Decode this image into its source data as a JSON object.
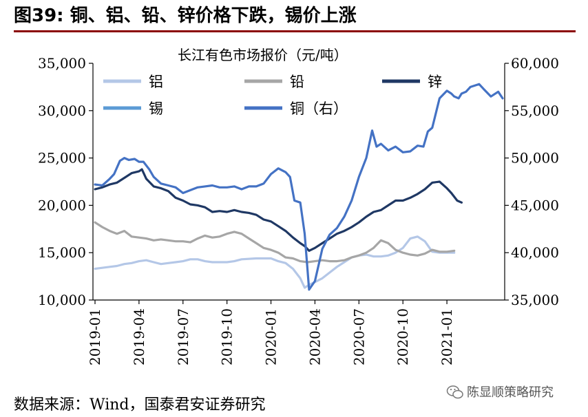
{
  "figure": {
    "title": "图39: 铜、铝、铅、锌价格下跌，锡价上涨",
    "source": "数据来源：Wind，国泰君安证券研究",
    "watermark": "陈显顺策略研究",
    "watermark_icon": "wechat-icon"
  },
  "chart_data": {
    "type": "line",
    "title": "长江有色市场报价（元/吨）",
    "xlabel": "",
    "ylabel": "",
    "x_ticks": [
      "2019-01",
      "2019-04",
      "2019-07",
      "2019-10",
      "2020-01",
      "2020-04",
      "2020-07",
      "2020-10",
      "2021-01"
    ],
    "x_range": [
      "2019-01",
      "2021-02"
    ],
    "ylim_left": [
      10000,
      35000
    ],
    "y_ticks_left": [
      "10,000",
      "15,000",
      "20,000",
      "25,000",
      "30,000",
      "35,000"
    ],
    "ylim_right": [
      35000,
      60000
    ],
    "y_ticks_right": [
      "35,000",
      "40,000",
      "45,000",
      "50,000",
      "55,000",
      "60,000"
    ],
    "grid": false,
    "legend_placement": "top-left",
    "series": [
      {
        "name": "铝",
        "axis": "left",
        "color": "#b4c7e7",
        "points": [
          [
            0,
            13300
          ],
          [
            0.5,
            13400
          ],
          [
            1,
            13500
          ],
          [
            1.5,
            13600
          ],
          [
            2,
            13800
          ],
          [
            2.5,
            13900
          ],
          [
            3,
            14100
          ],
          [
            3.5,
            14200
          ],
          [
            4,
            14000
          ],
          [
            4.5,
            13800
          ],
          [
            5,
            13900
          ],
          [
            5.5,
            14000
          ],
          [
            6,
            14100
          ],
          [
            6.5,
            14300
          ],
          [
            7,
            14300
          ],
          [
            7.5,
            14100
          ],
          [
            8,
            14000
          ],
          [
            8.5,
            14000
          ],
          [
            9,
            14000
          ],
          [
            9.5,
            14100
          ],
          [
            10,
            14300
          ],
          [
            11,
            14400
          ],
          [
            12,
            14400
          ],
          [
            12.5,
            14100
          ],
          [
            13,
            13900
          ],
          [
            13.5,
            13300
          ],
          [
            14,
            12300
          ],
          [
            14.3,
            11300
          ],
          [
            14.6,
            11600
          ],
          [
            15,
            11900
          ],
          [
            15.5,
            12300
          ],
          [
            16,
            12900
          ],
          [
            16.5,
            13500
          ],
          [
            17,
            14000
          ],
          [
            17.5,
            14500
          ],
          [
            18,
            14700
          ],
          [
            18.5,
            14800
          ],
          [
            19,
            14600
          ],
          [
            19.5,
            14600
          ],
          [
            20,
            14700
          ],
          [
            20.5,
            15000
          ],
          [
            21,
            15500
          ],
          [
            21.5,
            16500
          ],
          [
            22,
            16700
          ],
          [
            22.5,
            16200
          ],
          [
            23,
            15100
          ],
          [
            23.5,
            15000
          ],
          [
            24.5,
            15000
          ]
        ]
      },
      {
        "name": "铅",
        "axis": "left",
        "color": "#a6a6a6",
        "points": [
          [
            0,
            18200
          ],
          [
            0.5,
            17700
          ],
          [
            1,
            17300
          ],
          [
            1.5,
            17000
          ],
          [
            2,
            17300
          ],
          [
            2.5,
            16700
          ],
          [
            3,
            16600
          ],
          [
            3.5,
            16500
          ],
          [
            4,
            16300
          ],
          [
            4.5,
            16400
          ],
          [
            5,
            16300
          ],
          [
            5.5,
            16200
          ],
          [
            6,
            16200
          ],
          [
            6.5,
            16100
          ],
          [
            7,
            16500
          ],
          [
            7.5,
            16800
          ],
          [
            8,
            16600
          ],
          [
            8.5,
            16700
          ],
          [
            9,
            17000
          ],
          [
            9.5,
            17200
          ],
          [
            10,
            17000
          ],
          [
            10.5,
            16500
          ],
          [
            11,
            16000
          ],
          [
            11.5,
            15500
          ],
          [
            12,
            15300
          ],
          [
            12.5,
            15000
          ],
          [
            13,
            14500
          ],
          [
            13.5,
            14400
          ],
          [
            14,
            14100
          ],
          [
            14.5,
            14000
          ],
          [
            15,
            14100
          ],
          [
            15.5,
            14200
          ],
          [
            16,
            14100
          ],
          [
            16.5,
            14100
          ],
          [
            17,
            14200
          ],
          [
            17.5,
            14500
          ],
          [
            18,
            14700
          ],
          [
            18.5,
            15000
          ],
          [
            19,
            15500
          ],
          [
            19.5,
            16300
          ],
          [
            20,
            16000
          ],
          [
            20.5,
            15300
          ],
          [
            21,
            15000
          ],
          [
            21.5,
            14800
          ],
          [
            22,
            14700
          ],
          [
            22.5,
            14900
          ],
          [
            23,
            15300
          ],
          [
            23.5,
            15100
          ],
          [
            24,
            15100
          ],
          [
            24.5,
            15200
          ]
        ]
      },
      {
        "name": "锌",
        "axis": "left",
        "color": "#1f3864",
        "points": [
          [
            0,
            21700
          ],
          [
            0.5,
            21900
          ],
          [
            1,
            22200
          ],
          [
            1.5,
            22400
          ],
          [
            2,
            22900
          ],
          [
            2.5,
            23400
          ],
          [
            3,
            23600
          ],
          [
            3.2,
            23800
          ],
          [
            3.5,
            22800
          ],
          [
            4,
            22000
          ],
          [
            4.5,
            21800
          ],
          [
            5,
            21500
          ],
          [
            5.5,
            20800
          ],
          [
            6,
            20500
          ],
          [
            6.5,
            20100
          ],
          [
            7,
            20000
          ],
          [
            7.5,
            19800
          ],
          [
            8,
            19300
          ],
          [
            8.5,
            19400
          ],
          [
            9,
            19300
          ],
          [
            9.5,
            19500
          ],
          [
            10,
            19300
          ],
          [
            10.5,
            19200
          ],
          [
            11,
            19000
          ],
          [
            11.5,
            18500
          ],
          [
            12,
            18300
          ],
          [
            12.5,
            17800
          ],
          [
            13,
            17300
          ],
          [
            13.5,
            16600
          ],
          [
            14,
            16000
          ],
          [
            14.3,
            15700
          ],
          [
            14.6,
            15200
          ],
          [
            15,
            15500
          ],
          [
            15.5,
            16000
          ],
          [
            16,
            16500
          ],
          [
            16.5,
            17000
          ],
          [
            17,
            17300
          ],
          [
            17.5,
            17700
          ],
          [
            18,
            18200
          ],
          [
            18.5,
            18800
          ],
          [
            19,
            19300
          ],
          [
            19.5,
            19500
          ],
          [
            20,
            20000
          ],
          [
            20.5,
            20500
          ],
          [
            21,
            20500
          ],
          [
            21.5,
            20800
          ],
          [
            22,
            21200
          ],
          [
            22.5,
            21700
          ],
          [
            23,
            22400
          ],
          [
            23.5,
            22500
          ],
          [
            24,
            21800
          ],
          [
            24.3,
            21300
          ],
          [
            24.7,
            20500
          ],
          [
            25,
            20300
          ]
        ]
      },
      {
        "name": "锡",
        "axis": "right",
        "color": "#5b9bd5",
        "points": []
      },
      {
        "name": "铜（右）",
        "axis": "right",
        "color": "#4472c4",
        "points": [
          [
            0,
            47200
          ],
          [
            0.5,
            47100
          ],
          [
            1,
            47800
          ],
          [
            1.3,
            48300
          ],
          [
            1.7,
            49700
          ],
          [
            2,
            50000
          ],
          [
            2.3,
            49800
          ],
          [
            2.7,
            49900
          ],
          [
            3,
            49600
          ],
          [
            3.3,
            49600
          ],
          [
            3.7,
            48800
          ],
          [
            4,
            48000
          ],
          [
            4.5,
            47300
          ],
          [
            5,
            47100
          ],
          [
            5.5,
            46900
          ],
          [
            6,
            46300
          ],
          [
            6.5,
            46600
          ],
          [
            7,
            46900
          ],
          [
            7.5,
            47000
          ],
          [
            8,
            47100
          ],
          [
            8.5,
            46900
          ],
          [
            9,
            46900
          ],
          [
            9.5,
            47000
          ],
          [
            10,
            46700
          ],
          [
            10.5,
            47000
          ],
          [
            11,
            47000
          ],
          [
            11.5,
            47300
          ],
          [
            12,
            48300
          ],
          [
            12.5,
            48900
          ],
          [
            13,
            48500
          ],
          [
            13.3,
            48000
          ],
          [
            13.6,
            45500
          ],
          [
            14,
            45300
          ],
          [
            14.3,
            42000
          ],
          [
            14.6,
            36100
          ],
          [
            15,
            37000
          ],
          [
            15.5,
            40400
          ],
          [
            16,
            41900
          ],
          [
            16.5,
            42600
          ],
          [
            17,
            43800
          ],
          [
            17.5,
            45500
          ],
          [
            18,
            48000
          ],
          [
            18.5,
            50000
          ],
          [
            18.9,
            52900
          ],
          [
            19.2,
            51200
          ],
          [
            19.5,
            51500
          ],
          [
            20,
            50800
          ],
          [
            20.5,
            51200
          ],
          [
            21,
            50600
          ],
          [
            21.5,
            50700
          ],
          [
            22,
            51300
          ],
          [
            22.4,
            51200
          ],
          [
            22.7,
            52800
          ],
          [
            23,
            53200
          ],
          [
            23.5,
            56300
          ],
          [
            24,
            57100
          ],
          [
            24.3,
            56800
          ],
          [
            24.5,
            56500
          ],
          [
            24.8,
            56300
          ],
          [
            25,
            56800
          ],
          [
            25.3,
            57000
          ],
          [
            25.6,
            57500
          ],
          [
            26,
            57700
          ],
          [
            26.2,
            57800
          ],
          [
            26.5,
            57300
          ],
          [
            27,
            56500
          ],
          [
            27.5,
            57000
          ],
          [
            27.8,
            56300
          ]
        ]
      }
    ]
  }
}
